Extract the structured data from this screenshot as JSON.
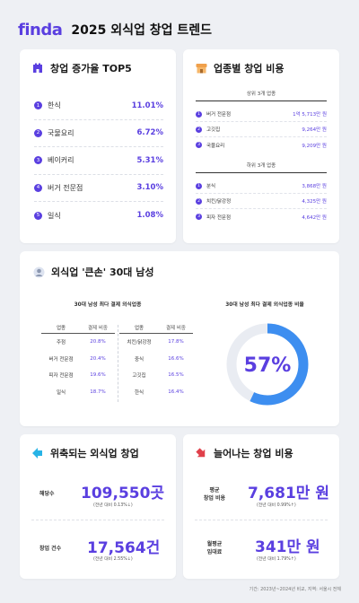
{
  "header": {
    "logo": "finda",
    "title": "2025 외식업 창업 트렌드"
  },
  "top5": {
    "title": "창업 증가율 TOP5",
    "items": [
      {
        "rank": "1",
        "name": "한식",
        "value": "11.01%"
      },
      {
        "rank": "2",
        "name": "국물요리",
        "value": "6.72%"
      },
      {
        "rank": "3",
        "name": "베이커리",
        "value": "5.31%"
      },
      {
        "rank": "4",
        "name": "버거 전문점",
        "value": "3.10%"
      },
      {
        "rank": "5",
        "name": "일식",
        "value": "1.08%"
      }
    ]
  },
  "cost": {
    "title": "업종별 창업 비용",
    "top_label": "상위 3개 업종",
    "top": [
      {
        "rank": "1",
        "name": "버거 전문점",
        "value": "1억 5,713만 원"
      },
      {
        "rank": "2",
        "name": "고깃집",
        "value": "9,264만 원"
      },
      {
        "rank": "3",
        "name": "국물요리",
        "value": "9,209만 원"
      }
    ],
    "bottom_label": "하위 3개 업종",
    "bottom": [
      {
        "rank": "1",
        "name": "분식",
        "value": "3,868만 원"
      },
      {
        "rank": "2",
        "name": "치킨/닭강정",
        "value": "4,325만 원"
      },
      {
        "rank": "3",
        "name": "피자 전문점",
        "value": "4,642만 원"
      }
    ]
  },
  "men30": {
    "title": "외식업 '큰손' 30대 남성",
    "table_title": "30대 남성 최다 결제 외식업종",
    "head_type": "업종",
    "head_ratio": "결제 비중",
    "left": [
      {
        "name": "주점",
        "value": "20.8%"
      },
      {
        "name": "버거 전문점",
        "value": "20.4%"
      },
      {
        "name": "피자 전문점",
        "value": "19.6%"
      },
      {
        "name": "일식",
        "value": "18.7%"
      }
    ],
    "right": [
      {
        "name": "치킨/닭강정",
        "value": "17.8%"
      },
      {
        "name": "중식",
        "value": "16.6%"
      },
      {
        "name": "고깃집",
        "value": "16.5%"
      },
      {
        "name": "한식",
        "value": "16.4%"
      }
    ],
    "donut_title": "30대 남성 최다 결제 외식업종 비율",
    "donut_label": "57%",
    "donut_fraction": 0.57,
    "donut_color": "#3d8ef0"
  },
  "shrink": {
    "title": "위축되는 외식업 창업",
    "s1_label": "해당수",
    "s1_value": "109,550곳",
    "s1_note": "(전년 대비 0.13%↓)",
    "s2_label": "창업 건수",
    "s2_value": "17,564건",
    "s2_note": "(전년 대비 2.55%↓)"
  },
  "grow": {
    "title": "늘어나는 창업 비용",
    "s1_label_a": "평균",
    "s1_label_b": "창업 비용",
    "s1_value": "7,681만 원",
    "s1_note": "(전년 대비 0.99%↑)",
    "s2_label_a": "월평균",
    "s2_label_b": "임대료",
    "s2_value": "341만 원",
    "s2_note": "(전년 대비 1.79%↑)"
  },
  "footer": "기간: 2023년~2024년 비교, 지역: 서울시 전체",
  "colors": {
    "accent": "#5a3fe0",
    "donut": "#3d8ef0",
    "track": "#e9ecf2"
  }
}
